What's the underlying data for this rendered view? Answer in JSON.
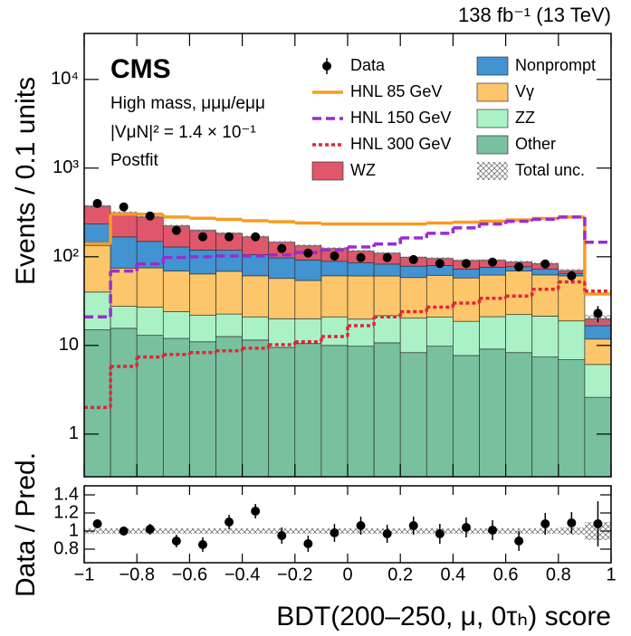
{
  "chart_data": [
    {
      "type": "histogram",
      "title": "CMS",
      "lumi": "138 fb⁻¹ (13 TeV)",
      "annotations": [
        "High mass, μμμ/eμμ",
        "|VμN|² = 1.4 × 10⁻¹",
        "Postfit"
      ],
      "ylabel": "Events / 0.1 units",
      "log": true,
      "stacked": true,
      "bins": [
        -1,
        -0.9,
        -0.8,
        -0.7,
        -0.6,
        -0.5,
        -0.4,
        -0.3,
        -0.2,
        -0.1,
        0,
        0.1,
        0.2,
        0.3,
        0.4,
        0.5,
        0.6,
        0.7,
        0.8,
        0.9,
        1
      ],
      "ylim": [
        0.33,
        33000
      ],
      "yticks": [
        1,
        10,
        {
          "value": 100,
          "label": "10²"
        },
        {
          "value": 1000,
          "label": "10³"
        },
        {
          "value": 10000,
          "label": "10⁴"
        }
      ],
      "series": [
        {
          "name": "Other",
          "color": "#78c09e",
          "values": [
            15,
            15.6,
            13,
            12,
            11,
            12.6,
            11.5,
            9.5,
            10.5,
            10,
            9.8,
            10.7,
            8.3,
            9.8,
            7.7,
            9.1,
            8.3,
            7.4,
            6.9,
            2.6
          ]
        },
        {
          "name": "ZZ",
          "color": "#aaf2c6",
          "values": [
            25,
            12,
            14,
            12,
            11,
            10,
            9.5,
            10.5,
            9.5,
            11,
            10,
            11,
            12,
            11,
            11,
            12,
            14,
            14,
            12,
            3.5
          ]
        },
        {
          "name": "Vγ",
          "color": "#fdc66a",
          "values": [
            93,
            47,
            48,
            45,
            42,
            46,
            40,
            37,
            34,
            40,
            41,
            39,
            38,
            41,
            39,
            41,
            47,
            41,
            42,
            5.7
          ]
        },
        {
          "name": "Nonprompt",
          "color": "#4193d2",
          "values": [
            101,
            93,
            74,
            60,
            55,
            50,
            45,
            40,
            38,
            28,
            25,
            22,
            20,
            18,
            15,
            14,
            8,
            10,
            4,
            4.9
          ]
        },
        {
          "name": "WZ",
          "color": "#e0566b",
          "values": [
            138,
            147,
            132,
            94,
            79,
            65,
            62,
            49,
            41,
            35,
            30,
            27,
            20,
            16,
            18,
            15,
            10,
            11,
            5,
            3.3
          ]
        }
      ],
      "signals": [
        {
          "name": "HNL 85 GeV",
          "color": "#f89c20",
          "dash": "none",
          "values": [
            139,
            302,
            302,
            281,
            272,
            264,
            255,
            248,
            240,
            234,
            234,
            234,
            234,
            240,
            245,
            252,
            260,
            270,
            281,
            38
          ]
        },
        {
          "name": "HNL 150 GeV",
          "color": "#9d2bd0",
          "dash": "10,5",
          "values": [
            21,
            69,
            83,
            98,
            100,
            102,
            102,
            105,
            112,
            119,
            129,
            139,
            163,
            184,
            212,
            234,
            251,
            265,
            281,
            146
          ]
        },
        {
          "name": "HNL 300 GeV",
          "color": "#e42536",
          "dash": "4,3",
          "values": [
            2,
            5.8,
            7.4,
            7.9,
            8.3,
            8.7,
            9.3,
            10.2,
            11,
            12.6,
            16.7,
            21,
            24,
            27,
            30,
            34,
            36,
            43,
            52,
            41
          ]
        }
      ],
      "data": {
        "name": "Data",
        "values": [
          399,
          365,
          288,
          198,
          168,
          168,
          168,
          124,
          110,
          102,
          98,
          98,
          93,
          84,
          84,
          87,
          77,
          83,
          61,
          23
        ],
        "errors": [
          20,
          19,
          17,
          14,
          13,
          13,
          13,
          11,
          10.5,
          10,
          10,
          10,
          9.6,
          9.2,
          9.2,
          9.3,
          8.8,
          9.1,
          7.8,
          4.8
        ]
      },
      "uncertainty": {
        "name": "Total unc.",
        "values": [
          0.03,
          0.03,
          0.03,
          0.03,
          0.03,
          0.03,
          0.03,
          0.03,
          0.03,
          0.03,
          0.03,
          0.03,
          0.03,
          0.03,
          0.03,
          0.03,
          0.03,
          0.03,
          0.04,
          0.1
        ]
      }
    },
    {
      "type": "scatter",
      "ylabel": "Data / Pred.",
      "xlabel": "BDT(200–250, μ, 0τₕ) score",
      "bins": [
        -1,
        -0.9,
        -0.8,
        -0.7,
        -0.6,
        -0.5,
        -0.4,
        -0.3,
        -0.2,
        -0.1,
        0,
        0.1,
        0.2,
        0.3,
        0.4,
        0.5,
        0.6,
        0.7,
        0.8,
        0.9,
        1
      ],
      "xlim": [
        -1,
        1
      ],
      "xticks": [
        {
          "value": -1,
          "label": "−1"
        },
        {
          "value": -0.8,
          "label": "−0.8"
        },
        {
          "value": -0.6,
          "label": "−0.6"
        },
        {
          "value": -0.4,
          "label": "−0.4"
        },
        {
          "value": -0.2,
          "label": "−0.2"
        },
        0,
        0.2,
        0.4,
        0.6,
        0.8,
        1
      ],
      "ylim": [
        0.65,
        1.5
      ],
      "yticks": [
        0.8,
        1,
        1.2,
        1.4
      ],
      "values": [
        1.08,
        1.0,
        1.02,
        0.89,
        0.85,
        1.1,
        1.22,
        0.95,
        0.86,
        0.98,
        1.06,
        0.97,
        1.06,
        0.97,
        1.04,
        1.01,
        0.89,
        1.08,
        1.09,
        1.08
      ],
      "errors": [
        0.05,
        0.05,
        0.06,
        0.07,
        0.08,
        0.08,
        0.08,
        0.09,
        0.09,
        0.1,
        0.1,
        0.1,
        0.1,
        0.11,
        0.11,
        0.11,
        0.11,
        0.12,
        0.12,
        0.25
      ],
      "uncertainty": [
        0.03,
        0.03,
        0.03,
        0.03,
        0.03,
        0.03,
        0.03,
        0.03,
        0.03,
        0.03,
        0.03,
        0.03,
        0.03,
        0.03,
        0.03,
        0.03,
        0.03,
        0.03,
        0.04,
        0.1
      ]
    }
  ]
}
